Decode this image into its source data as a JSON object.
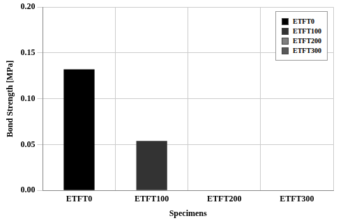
{
  "chart_data": {
    "type": "bar",
    "categories": [
      "ETFT0",
      "ETFT100",
      "ETFT200",
      "ETFT300"
    ],
    "values": [
      0.132,
      0.054,
      0,
      0
    ],
    "colors": [
      "#000000",
      "#333333",
      "#7f7f7f",
      "#595959"
    ],
    "x_label": "Specimens",
    "y_label": "Bond Strength [MPa]",
    "ylim": [
      0,
      0.2
    ],
    "yticks": [
      {
        "value": 0,
        "label": "0.00"
      },
      {
        "value": 0.05,
        "label": "0.05"
      },
      {
        "value": 0.1,
        "label": "0.10"
      },
      {
        "value": 0.15,
        "label": "0.15"
      },
      {
        "value": 0.2,
        "label": "0.20"
      }
    ],
    "grid": true,
    "legend": "top-right"
  }
}
